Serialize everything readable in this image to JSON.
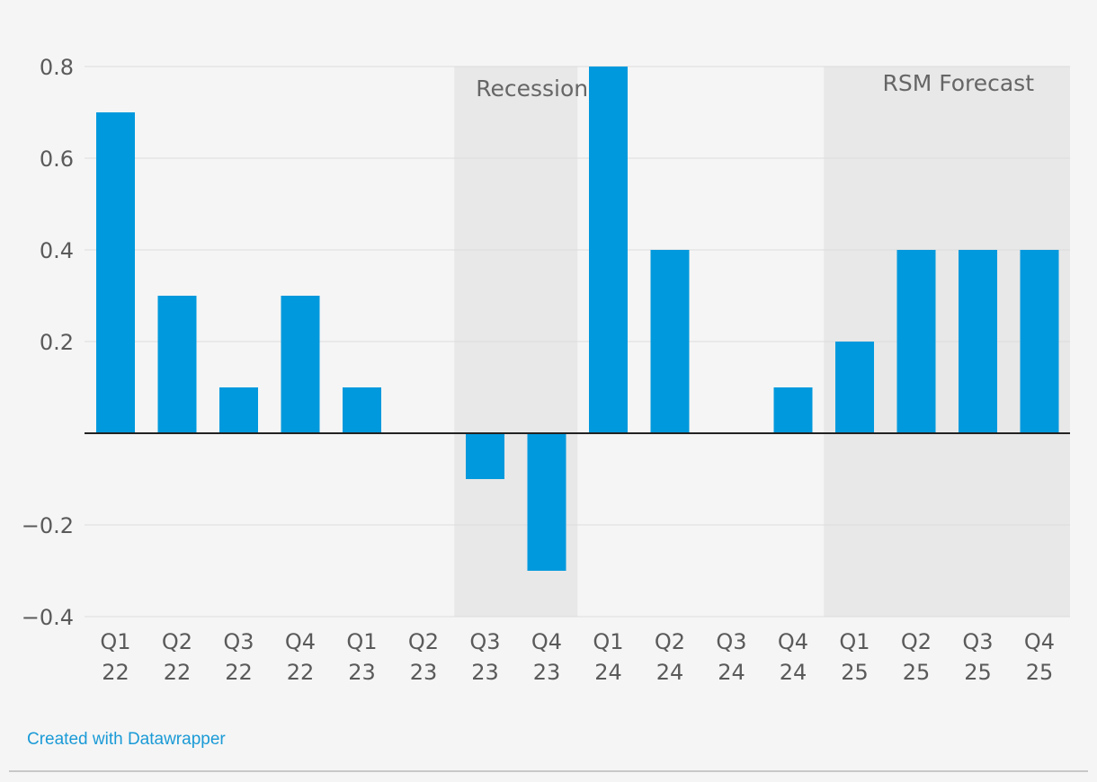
{
  "chart_data": {
    "type": "bar",
    "categories": [
      [
        "Q1",
        "22"
      ],
      [
        "Q2",
        "22"
      ],
      [
        "Q3",
        "22"
      ],
      [
        "Q4",
        "22"
      ],
      [
        "Q1",
        "23"
      ],
      [
        "Q2",
        "23"
      ],
      [
        "Q3",
        "23"
      ],
      [
        "Q4",
        "23"
      ],
      [
        "Q1",
        "24"
      ],
      [
        "Q2",
        "24"
      ],
      [
        "Q3",
        "24"
      ],
      [
        "Q4",
        "24"
      ],
      [
        "Q1",
        "25"
      ],
      [
        "Q2",
        "25"
      ],
      [
        "Q3",
        "25"
      ],
      [
        "Q4",
        "25"
      ]
    ],
    "values": [
      0.7,
      0.3,
      0.1,
      0.3,
      0.1,
      0,
      -0.1,
      -0.3,
      0.8,
      0.4,
      0,
      0.1,
      0.2,
      0.4,
      0.4,
      0.4
    ],
    "ylim": [
      -0.4,
      0.8
    ],
    "yticks": [
      0.8,
      0.6,
      0.4,
      0.2,
      -0.2,
      -0.4
    ],
    "ytick_labels": [
      "0.8",
      "0.6",
      "0.4",
      "0.2",
      "−0.2",
      "−0.4"
    ],
    "bands": [
      {
        "label": "Recession",
        "start_index": 6,
        "end_index": 7
      },
      {
        "label": "RSM Forecast",
        "start_index": 12,
        "end_index": 15
      }
    ],
    "grid": true,
    "title": "",
    "xlabel": "",
    "ylabel": ""
  },
  "colors": {
    "bar": "#0099dd",
    "band": "#e8e8e8",
    "grid": "#dddddd",
    "zero_line": "#222222",
    "background": "#f5f5f5"
  },
  "footer": {
    "credit": "Created with Datawrapper"
  }
}
